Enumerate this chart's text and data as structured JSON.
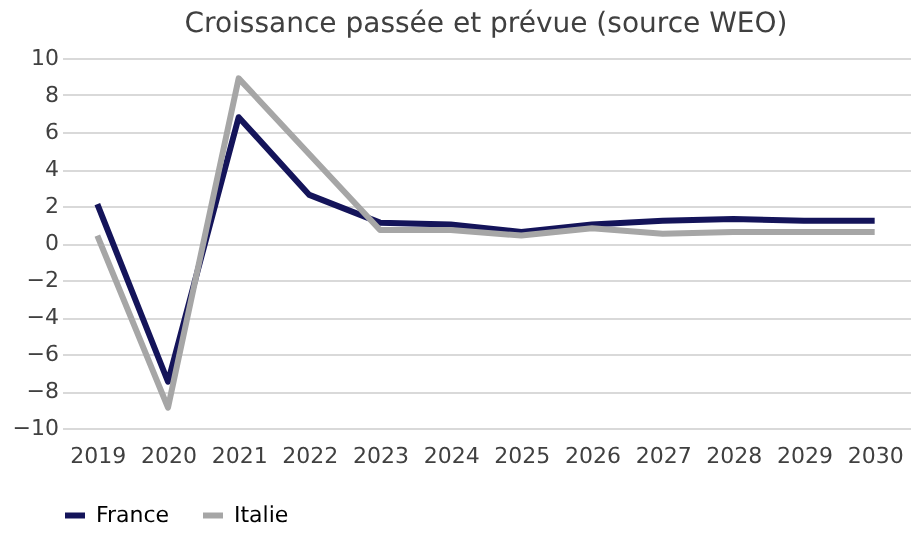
{
  "chart_data": {
    "type": "line",
    "title": "Croissance passée et prévue (source WEO)",
    "categories": [
      "2019",
      "2020",
      "2021",
      "2022",
      "2023",
      "2024",
      "2025",
      "2026",
      "2027",
      "2028",
      "2029",
      "2030"
    ],
    "series": [
      {
        "name": "France",
        "color": "#14145a",
        "values": [
          2.1,
          -7.5,
          6.8,
          2.6,
          1.1,
          1.0,
          0.6,
          1.0,
          1.2,
          1.3,
          1.2,
          1.2
        ]
      },
      {
        "name": "Italie",
        "color": "#a6a6a6",
        "values": [
          0.4,
          -8.9,
          8.9,
          4.8,
          0.7,
          0.7,
          0.4,
          0.8,
          0.5,
          0.6,
          0.6,
          0.6
        ]
      }
    ],
    "ylim": [
      -10,
      10
    ],
    "yticks": [
      -10,
      -8,
      -6,
      -4,
      -2,
      0,
      2,
      4,
      6,
      8,
      10
    ],
    "grid": "y",
    "legend": "bottom",
    "marker": "none",
    "line_style": "solid"
  }
}
